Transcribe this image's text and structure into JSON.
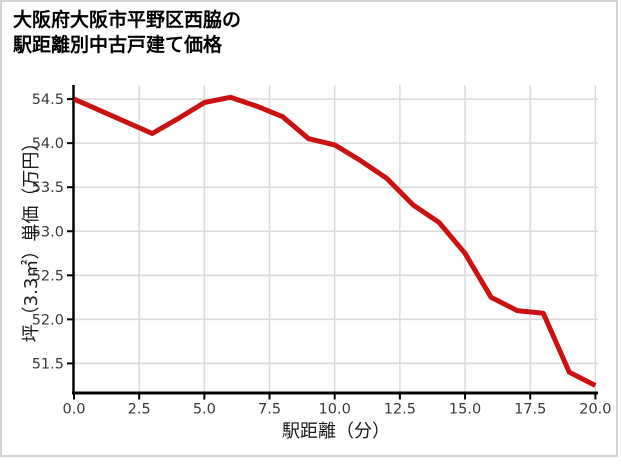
{
  "title": {
    "line1": "大阪府大阪市平野区西脇の",
    "line2": "駅距離別中古戸建て価格"
  },
  "chart_data": {
    "type": "line",
    "title": "大阪府大阪市平野区西脇の駅距離別中古戸建て価格",
    "xlabel": "駅距離（分）",
    "ylabel": "坪（3.3㎡）単価（万円）",
    "x": [
      0,
      1,
      2,
      3,
      4,
      5,
      6,
      7,
      8,
      9,
      10,
      11,
      12,
      13,
      14,
      15,
      16,
      17,
      18,
      19,
      20
    ],
    "y": [
      54.5,
      54.37,
      54.24,
      54.11,
      54.28,
      54.46,
      54.52,
      54.42,
      54.3,
      54.05,
      53.98,
      53.8,
      53.6,
      53.3,
      53.1,
      52.75,
      52.25,
      52.1,
      52.07,
      51.4,
      51.25
    ],
    "x_tick_values": [
      0,
      2.5,
      5,
      7.5,
      10,
      12.5,
      15,
      17.5,
      20
    ],
    "x_tick_labels": [
      "0.0",
      "2.5",
      "5.0",
      "7.5",
      "10.0",
      "12.5",
      "15.0",
      "17.5",
      "20.0"
    ],
    "y_tick_values": [
      51.5,
      52.0,
      52.5,
      53.0,
      53.5,
      54.0,
      54.5
    ],
    "y_tick_labels": [
      "51.5",
      "52.0",
      "52.5",
      "53.0",
      "53.5",
      "54.0",
      "54.5"
    ],
    "xlim": [
      0,
      20.1
    ],
    "ylim": [
      51.17,
      54.66
    ],
    "grid": true,
    "legend": "none",
    "line_color": "#cc1111",
    "line_width": 5,
    "grid_color": "#d9d9d9",
    "spine_color": "#000000",
    "tick_label_color": "#3a3a3a"
  }
}
